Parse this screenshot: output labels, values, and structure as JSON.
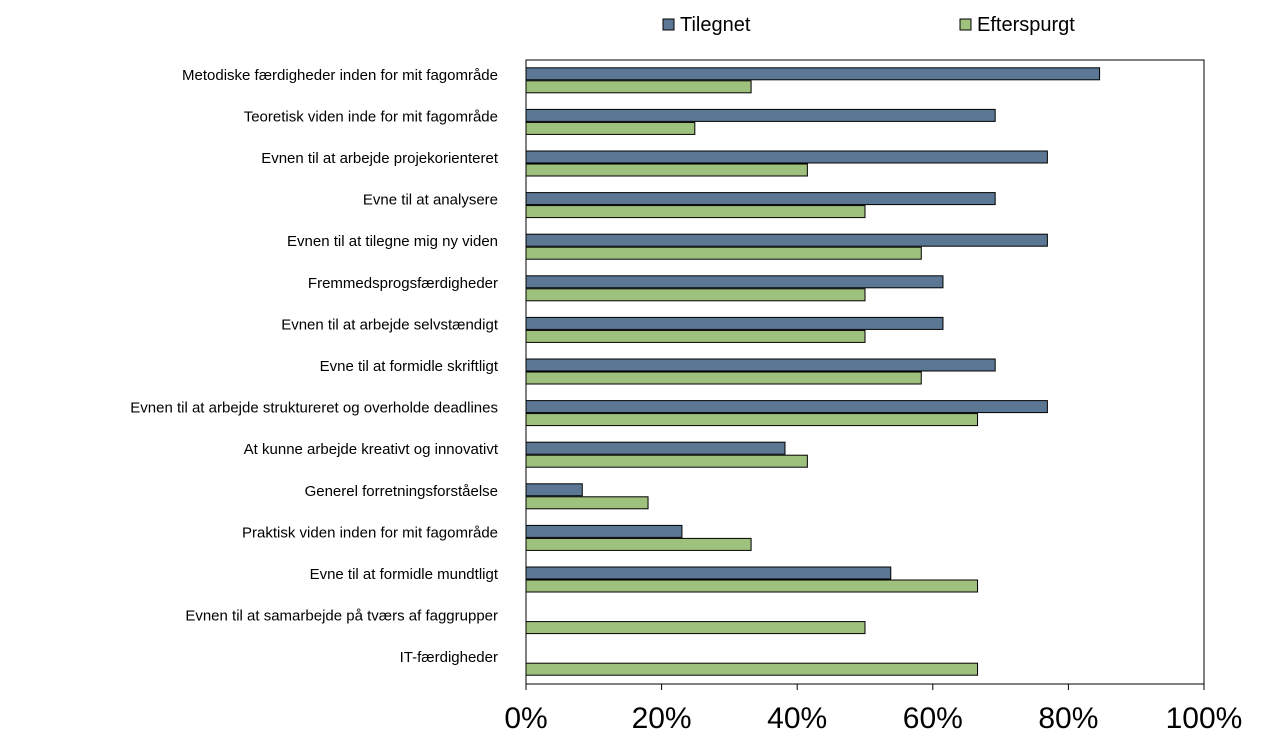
{
  "chart_data": {
    "type": "bar",
    "orientation": "horizontal",
    "categories": [
      "Metodiske færdigheder inden for mit fagområde",
      "Teoretisk viden inde for mit fagområde",
      "Evnen til at arbejde projekorienteret",
      "Evne til at analysere",
      "Evnen til at tilegne mig ny viden",
      "Fremmedsprogsfærdigheder",
      "Evnen til at arbejde selvstændigt",
      "Evne til at formidle skriftligt",
      "Evnen til at arbejde struktureret og overholde deadlines",
      "At kunne arbejde kreativt og innovativt",
      "Generel forretningsforståelse",
      "Praktisk viden inden for mit fagområde",
      "Evne til at formidle mundtligt",
      "Evnen til at samarbejde på tværs af faggrupper",
      "IT-færdigheder"
    ],
    "series": [
      {
        "name": "Tilegnet",
        "color": "#5b7793",
        "values": [
          84.6,
          69.2,
          76.9,
          69.2,
          76.9,
          61.5,
          61.5,
          69.2,
          76.9,
          38.2,
          8.3,
          23.0,
          53.8,
          0,
          0
        ]
      },
      {
        "name": "Efterspurgt",
        "color": "#9fc17e",
        "values": [
          33.2,
          24.9,
          41.5,
          50.0,
          58.3,
          50.0,
          50.0,
          58.3,
          66.6,
          41.5,
          18.0,
          33.2,
          66.6,
          50.0,
          66.6
        ]
      }
    ],
    "xlim": [
      0,
      100
    ],
    "xticks": [
      "0%",
      "20%",
      "40%",
      "60%",
      "80%",
      "100%"
    ],
    "legend_position": "top",
    "grid": false,
    "title": "",
    "xlabel": "",
    "ylabel": ""
  }
}
